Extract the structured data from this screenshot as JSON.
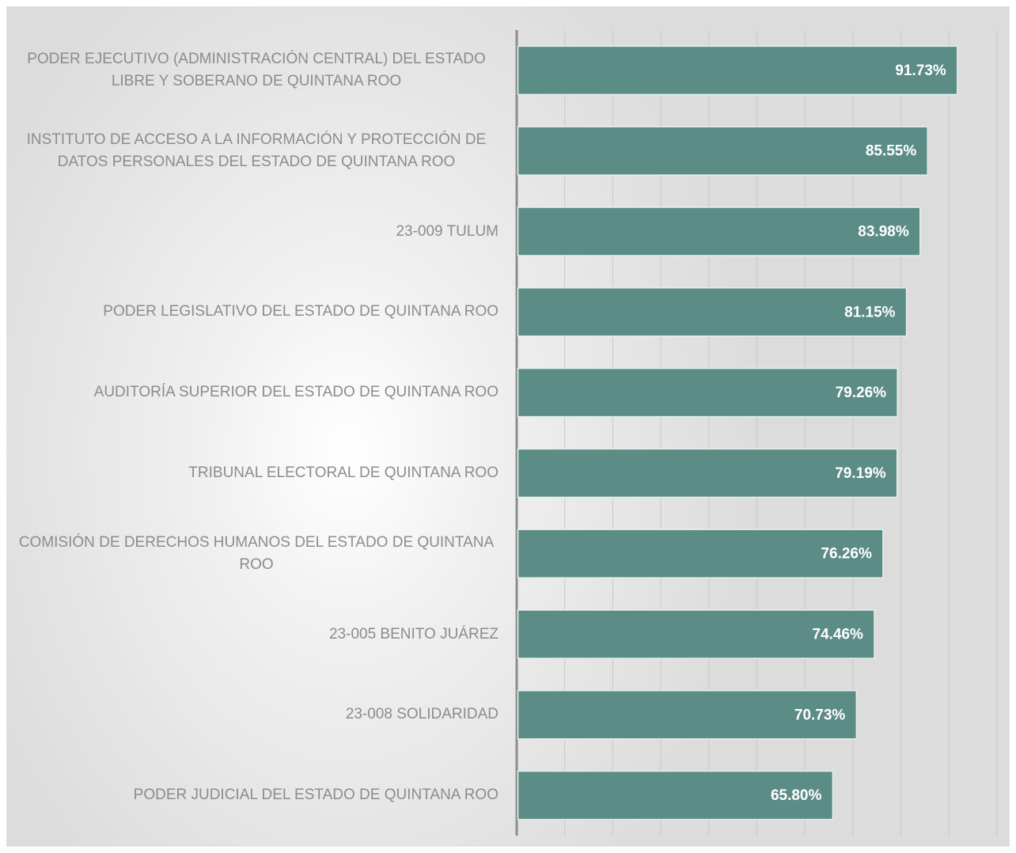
{
  "chart_data": {
    "type": "bar",
    "orientation": "horizontal",
    "categories": [
      "PODER EJECUTIVO (ADMINISTRACIÓN CENTRAL) DEL ESTADO LIBRE Y SOBERANO DE QUINTANA ROO",
      "INSTITUTO DE ACCESO A LA INFORMACIÓN Y PROTECCIÓN DE DATOS PERSONALES DEL ESTADO DE QUINTANA ROO",
      "23-009 TULUM",
      "PODER LEGISLATIVO DEL ESTADO DE QUINTANA ROO",
      "AUDITORÍA SUPERIOR DEL ESTADO DE QUINTANA ROO",
      "TRIBUNAL ELECTORAL DE QUINTANA ROO",
      "COMISIÓN DE DERECHOS HUMANOS DEL ESTADO DE QUINTANA ROO",
      "23-005 BENITO JUÁREZ",
      "23-008 SOLIDARIDAD",
      "PODER JUDICIAL DEL ESTADO DE QUINTANA ROO"
    ],
    "values": [
      91.73,
      85.55,
      83.98,
      81.15,
      79.26,
      79.19,
      76.26,
      74.46,
      70.73,
      65.8
    ],
    "value_labels": [
      "91.73%",
      "85.55%",
      "83.98%",
      "81.15%",
      "79.26%",
      "79.19%",
      "76.26%",
      "74.46%",
      "70.73%",
      "65.80%"
    ],
    "color": "#5b8c85",
    "xlim": [
      0,
      100
    ],
    "xticks": [
      0,
      10,
      20,
      30,
      40,
      50,
      60,
      70,
      80,
      90,
      100
    ],
    "grid": true
  }
}
